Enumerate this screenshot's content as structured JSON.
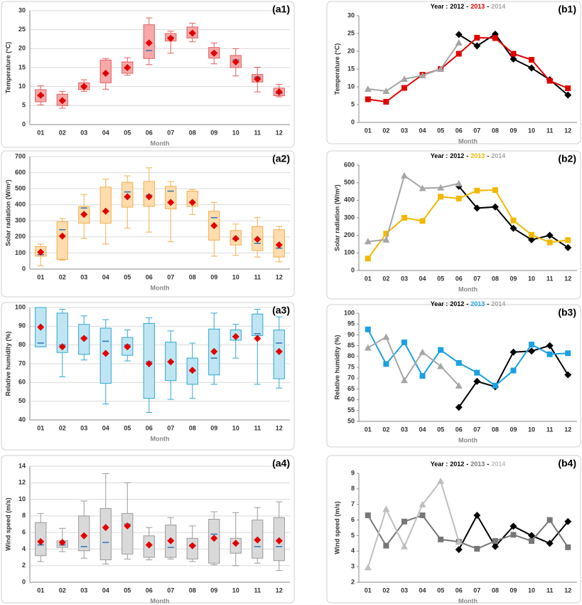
{
  "chart_data": [
    {
      "type": "box",
      "label": "(a1)",
      "ylabel": "Temperature (°C)",
      "xlabel": "Month",
      "categories": [
        "01",
        "02",
        "03",
        "04",
        "05",
        "06",
        "07",
        "08",
        "09",
        "10",
        "11",
        "12"
      ],
      "min": [
        5.2,
        4.3,
        8.7,
        9.3,
        13.0,
        15.8,
        18.8,
        21.8,
        16.0,
        12.8,
        8.6,
        7.3
      ],
      "q1": [
        6.0,
        5.0,
        9.2,
        11.0,
        13.5,
        17.4,
        22.0,
        22.8,
        17.5,
        15.0,
        11.2,
        7.6
      ],
      "median": [
        7.5,
        6.5,
        10.2,
        13.5,
        15.0,
        19.5,
        23.0,
        24.0,
        19.0,
        17.0,
        12.5,
        8.2
      ],
      "q3": [
        9.2,
        8.0,
        11.0,
        17.0,
        16.5,
        26.3,
        24.0,
        25.7,
        20.3,
        18.2,
        13.2,
        9.6
      ],
      "max": [
        10.2,
        8.7,
        11.8,
        17.4,
        17.6,
        28.1,
        24.6,
        26.7,
        21.5,
        20.0,
        15.1,
        10.6
      ],
      "mean": [
        7.7,
        6.3,
        10.0,
        13.5,
        15.0,
        21.5,
        22.7,
        24.1,
        18.8,
        16.5,
        12.0,
        8.6
      ],
      "box_color": "#f7a8a8",
      "edge_color": "#e06060",
      "median_color": "#2e75b6",
      "mean_color": "#e00000",
      "ylim": [
        0,
        30
      ],
      "yticks": [
        0,
        5,
        10,
        15,
        20,
        25,
        30
      ],
      "grid": true
    },
    {
      "type": "box",
      "label": "(a2)",
      "ylabel": "Solar radiation (W/m²)",
      "xlabel": "Month",
      "categories": [
        "01",
        "02",
        "03",
        "04",
        "05",
        "06",
        "07",
        "08",
        "09",
        "10",
        "11",
        "12"
      ],
      "min": [
        20,
        55,
        190,
        155,
        255,
        230,
        170,
        340,
        80,
        85,
        75,
        45
      ],
      "q1": [
        80,
        60,
        285,
        285,
        385,
        390,
        375,
        390,
        180,
        150,
        115,
        75
      ],
      "median": [
        90,
        245,
        380,
        360,
        480,
        460,
        485,
        415,
        320,
        185,
        160,
        130
      ],
      "q3": [
        140,
        295,
        390,
        510,
        540,
        545,
        515,
        485,
        360,
        240,
        265,
        245
      ],
      "max": [
        155,
        315,
        465,
        560,
        580,
        630,
        545,
        495,
        415,
        280,
        320,
        265
      ],
      "mean": [
        105,
        205,
        340,
        360,
        450,
        450,
        415,
        415,
        270,
        190,
        185,
        150
      ],
      "box_color": "#fddcae",
      "edge_color": "#f0b050",
      "median_color": "#2e75b6",
      "mean_color": "#e00000",
      "ylim": [
        0,
        700
      ],
      "yticks": [
        0,
        100,
        200,
        300,
        400,
        500,
        600,
        700
      ],
      "grid": true
    },
    {
      "type": "box",
      "label": "(a3)",
      "ylabel": "Relative humidity (%)",
      "xlabel": "Month",
      "categories": [
        "01",
        "02",
        "03",
        "04",
        "05",
        "06",
        "07",
        "08",
        "09",
        "10",
        "11",
        "12"
      ],
      "min": [
        79,
        63,
        72,
        48.5,
        71.5,
        44,
        51,
        51.5,
        59,
        73,
        59,
        57
      ],
      "q1": [
        79,
        76,
        75,
        59.5,
        74.5,
        51.5,
        61,
        59,
        64,
        82.5,
        85,
        62
      ],
      "median": [
        81,
        80,
        84,
        82,
        80,
        71,
        71,
        66,
        73,
        84.5,
        86,
        81
      ],
      "q3": [
        100,
        97,
        91,
        89,
        84,
        91.5,
        81.5,
        73,
        88.5,
        88,
        96.5,
        88
      ],
      "max": [
        100,
        99,
        95.5,
        93.5,
        88,
        94.5,
        87.5,
        81,
        97,
        91,
        99,
        95
      ],
      "mean": [
        89.5,
        79,
        83.5,
        75.5,
        79,
        70,
        71,
        66.5,
        76.5,
        84.5,
        83.5,
        76.5
      ],
      "box_color": "#bfe5f2",
      "edge_color": "#30a8d0",
      "median_color": "#2e75b6",
      "mean_color": "#e00000",
      "ylim": [
        40,
        100
      ],
      "yticks": [
        40,
        50,
        60,
        70,
        80,
        90,
        100
      ],
      "grid": true
    },
    {
      "type": "box",
      "label": "(a4)",
      "ylabel": "Wind speed (m/s)",
      "xlabel": "Month",
      "categories": [
        "01",
        "02",
        "03",
        "04",
        "05",
        "06",
        "07",
        "08",
        "09",
        "10",
        "11",
        "12"
      ],
      "min": [
        2.5,
        3.7,
        2.9,
        2.2,
        2.8,
        2.7,
        2.8,
        2.5,
        2.1,
        2.0,
        2.3,
        1.4
      ],
      "q1": [
        3.2,
        4.2,
        3.8,
        2.7,
        3.4,
        3.0,
        3.0,
        2.8,
        2.3,
        3.5,
        2.9,
        2.6
      ],
      "median": [
        4.5,
        4.5,
        4.3,
        4.8,
        7.0,
        4.5,
        4.2,
        4.5,
        5.8,
        4.7,
        4.3,
        4.3
      ],
      "q3": [
        7.2,
        5.0,
        8.0,
        8.9,
        8.3,
        5.6,
        6.9,
        5.3,
        7.6,
        5.3,
        7.5,
        7.8
      ],
      "max": [
        8.3,
        6.5,
        9.8,
        13.1,
        12.0,
        6.6,
        7.8,
        6.8,
        8.5,
        8.4,
        9.0,
        9.7
      ],
      "mean": [
        4.9,
        4.8,
        5.6,
        6.6,
        6.8,
        4.5,
        5.0,
        4.4,
        5.3,
        4.7,
        5.1,
        5.0
      ],
      "box_color": "#d9d9d9",
      "edge_color": "#9a9a9a",
      "median_color": "#2e75b6",
      "mean_color": "#e00000",
      "ylim": [
        0,
        14
      ],
      "yticks": [
        0,
        2,
        4,
        6,
        8,
        10,
        12,
        14
      ],
      "grid": true
    },
    {
      "type": "line",
      "label": "(b1)",
      "title_prefix": "Year :",
      "title_separator": "-",
      "ylabel": "Temperature (°C)",
      "xlabel": "Month",
      "categories": [
        "01",
        "02",
        "03",
        "04",
        "05",
        "06",
        "07",
        "08",
        "09",
        "10",
        "11",
        "12"
      ],
      "series": [
        {
          "name": "2012",
          "color": "#000000",
          "marker": "diamond",
          "values": [
            null,
            null,
            null,
            null,
            null,
            24.7,
            21.5,
            24.8,
            17.8,
            15.3,
            12.0,
            7.7
          ]
        },
        {
          "name": "2013",
          "color": "#e00000",
          "marker": "square",
          "values": [
            6.5,
            5.8,
            9.7,
            13.4,
            15.0,
            19.3,
            23.8,
            23.7,
            19.3,
            17.6,
            11.7,
            9.6
          ]
        },
        {
          "name": "2014",
          "color": "#a6a6a6",
          "marker": "triangle",
          "values": [
            9.4,
            8.8,
            12.2,
            13.2,
            15.0,
            22.4,
            null,
            null,
            null,
            null,
            null,
            null
          ]
        }
      ],
      "ylim": [
        0,
        30
      ],
      "yticks": [
        0,
        5,
        10,
        15,
        20,
        25,
        30
      ],
      "grid": false
    },
    {
      "type": "line",
      "label": "(b2)",
      "title_prefix": "Year :",
      "title_separator": "-",
      "ylabel": "Solar radiation (W/m²)",
      "xlabel": "Month",
      "categories": [
        "01",
        "02",
        "03",
        "04",
        "05",
        "06",
        "07",
        "08",
        "09",
        "10",
        "11",
        "12"
      ],
      "series": [
        {
          "name": "2012",
          "color": "#000000",
          "marker": "diamond",
          "values": [
            null,
            null,
            null,
            null,
            null,
            480,
            355,
            362,
            240,
            175,
            200,
            130
          ]
        },
        {
          "name": "2013",
          "color": "#f2b800",
          "marker": "square",
          "values": [
            68,
            210,
            300,
            282,
            420,
            410,
            455,
            458,
            285,
            203,
            160,
            173
          ]
        },
        {
          "name": "2014",
          "color": "#a6a6a6",
          "marker": "triangle",
          "values": [
            165,
            175,
            540,
            468,
            472,
            495,
            null,
            null,
            null,
            null,
            null,
            null
          ]
        }
      ],
      "ylim": [
        0,
        600
      ],
      "yticks": [
        0,
        100,
        200,
        300,
        400,
        500,
        600
      ],
      "grid": false
    },
    {
      "type": "line",
      "label": "(b3)",
      "title_prefix": "Year :",
      "title_separator": "-",
      "ylabel": "Relative humidity (%)",
      "xlabel": "Month",
      "categories": [
        "01",
        "02",
        "03",
        "04",
        "05",
        "06",
        "07",
        "08",
        "09",
        "10",
        "11",
        "12"
      ],
      "series": [
        {
          "name": "2012",
          "color": "#000000",
          "marker": "diamond",
          "values": [
            null,
            null,
            null,
            null,
            null,
            56.5,
            68.5,
            66,
            82,
            82.5,
            85,
            71.5
          ]
        },
        {
          "name": "2013",
          "color": "#1ba1e2",
          "marker": "square",
          "values": [
            92.5,
            76.5,
            86.5,
            71,
            83,
            77,
            72.5,
            66.5,
            73.5,
            85.5,
            81,
            81.5
          ]
        },
        {
          "name": "2014",
          "color": "#a6a6a6",
          "marker": "triangle",
          "values": [
            84,
            89,
            69,
            82,
            75.5,
            66.5,
            null,
            null,
            null,
            null,
            null,
            null
          ]
        }
      ],
      "ylim": [
        50,
        100
      ],
      "yticks": [
        50,
        55,
        60,
        65,
        70,
        75,
        80,
        85,
        90,
        95,
        100
      ],
      "grid": false
    },
    {
      "type": "line",
      "label": "(b4)",
      "title_prefix": "Year :",
      "title_separator": "-",
      "ylabel": "Wind speed (m/s)",
      "xlabel": "Month",
      "categories": [
        "01",
        "02",
        "03",
        "04",
        "05",
        "06",
        "07",
        "08",
        "09",
        "10",
        "11",
        "12"
      ],
      "series": [
        {
          "name": "2012",
          "color": "#000000",
          "marker": "diamond",
          "values": [
            null,
            null,
            null,
            null,
            null,
            4.1,
            6.3,
            4.3,
            5.6,
            5.0,
            4.5,
            5.9
          ]
        },
        {
          "name": "2013",
          "color": "#777777",
          "marker": "square",
          "values": [
            6.3,
            4.35,
            5.9,
            6.3,
            4.75,
            4.6,
            4.15,
            4.65,
            5.05,
            4.65,
            6.0,
            4.25
          ]
        },
        {
          "name": "2014",
          "color": "#bfbfbf",
          "marker": "triangle",
          "values": [
            2.95,
            6.7,
            4.3,
            7.0,
            8.5,
            4.6,
            null,
            null,
            null,
            null,
            null,
            null
          ]
        }
      ],
      "ylim": [
        2,
        9
      ],
      "yticks": [
        2,
        3,
        4,
        5,
        6,
        7,
        8,
        9
      ],
      "grid": false
    }
  ]
}
